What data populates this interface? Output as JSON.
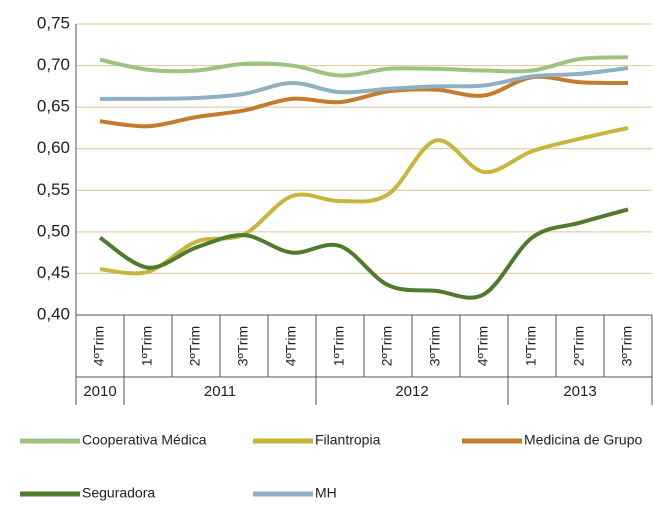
{
  "chart_data": {
    "type": "line",
    "categories": [
      "4ºTrim",
      "1ºTrim",
      "2ºTrim",
      "3ºTrim",
      "4ºTrim",
      "1ºTrim",
      "2ºTrim",
      "3ºTrim",
      "4ºTrim",
      "1ºTrim",
      "2ºTrim",
      "3ºTrim"
    ],
    "year_labels": [
      "2010",
      "2011",
      null,
      null,
      null,
      "2012",
      null,
      null,
      null,
      "2013",
      null,
      null
    ],
    "ylim": [
      0.4,
      0.75
    ],
    "yticks": [
      {
        "value": 0.4,
        "label": "0,40"
      },
      {
        "value": 0.45,
        "label": "0,45"
      },
      {
        "value": 0.5,
        "label": "0,50"
      },
      {
        "value": 0.55,
        "label": "0,55"
      },
      {
        "value": 0.6,
        "label": "0,60"
      },
      {
        "value": 0.65,
        "label": "0,65"
      },
      {
        "value": 0.7,
        "label": "0,70"
      },
      {
        "value": 0.75,
        "label": "0,75"
      }
    ],
    "grid": true,
    "series": [
      {
        "name": "Cooperativa Médica",
        "color": "#9dc47e",
        "values": [
          0.707,
          0.695,
          0.694,
          0.702,
          0.7,
          0.688,
          0.696,
          0.696,
          0.694,
          0.694,
          0.708,
          0.71
        ]
      },
      {
        "name": "Filantropia",
        "color": "#c9b43c",
        "values": [
          0.455,
          0.452,
          0.488,
          0.497,
          0.543,
          0.537,
          0.545,
          0.61,
          0.572,
          0.597,
          0.612,
          0.625
        ]
      },
      {
        "name": "Medicina de Grupo",
        "color": "#c57a2c",
        "values": [
          0.633,
          0.627,
          0.638,
          0.646,
          0.66,
          0.656,
          0.669,
          0.671,
          0.664,
          0.686,
          0.68,
          0.679
        ]
      },
      {
        "name": "Seguradora",
        "color": "#4f7b2d",
        "values": [
          0.493,
          0.457,
          0.481,
          0.496,
          0.475,
          0.483,
          0.436,
          0.429,
          0.425,
          0.493,
          0.511,
          0.527
        ]
      },
      {
        "name": "MH",
        "color": "#8db0c4",
        "values": [
          0.66,
          0.66,
          0.661,
          0.666,
          0.679,
          0.668,
          0.672,
          0.675,
          0.676,
          0.687,
          0.69,
          0.697
        ]
      }
    ]
  }
}
